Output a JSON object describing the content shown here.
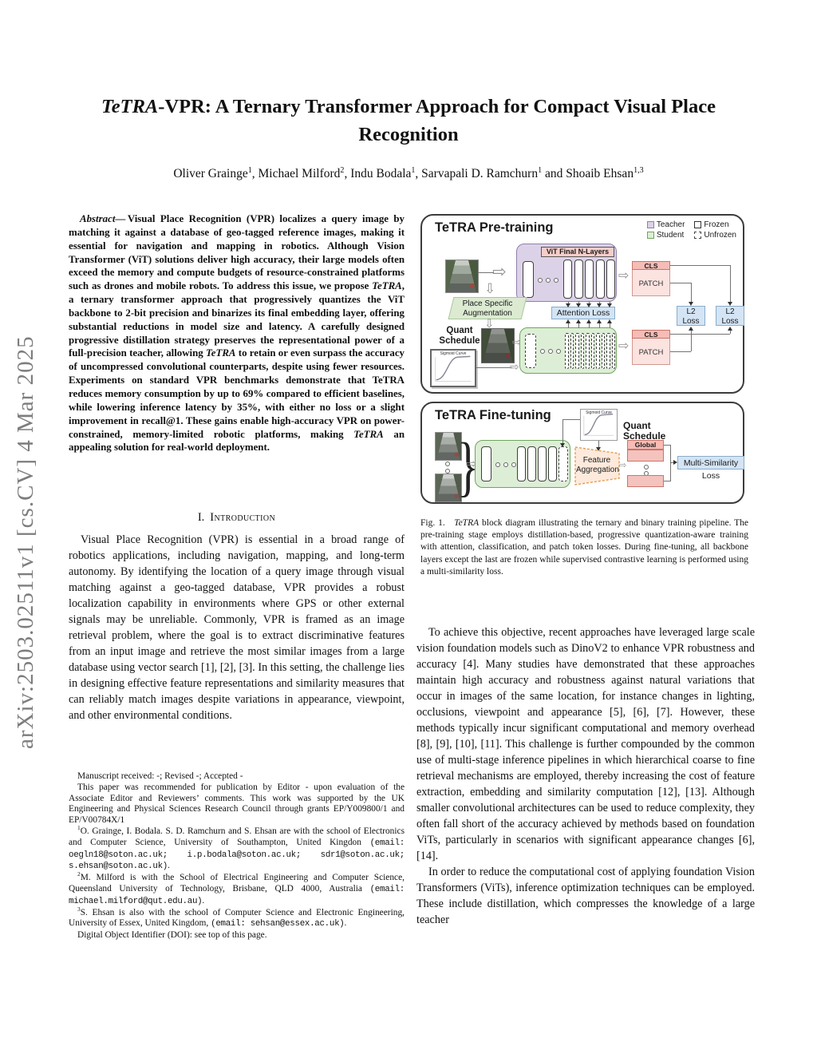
{
  "arxiv_watermark": "arXiv:2503.02511v1  [cs.CV]  4 Mar 2025",
  "title": {
    "italic_prefix": "TeTRA",
    "rest": "-VPR: A Ternary Transformer Approach for Compact Visual Place Recognition"
  },
  "authors_segments": [
    {
      "t": "Oliver Grainge"
    },
    {
      "t": "1",
      "sup": true
    },
    {
      "t": ", Michael Milford"
    },
    {
      "t": "2",
      "sup": true
    },
    {
      "t": ", Indu Bodala"
    },
    {
      "t": "1",
      "sup": true
    },
    {
      "t": ", Sarvapali D. Ramchurn"
    },
    {
      "t": "1",
      "sup": true
    },
    {
      "t": " and Shoaib Ehsan"
    },
    {
      "t": "1,3",
      "sup": true
    }
  ],
  "abstract_segments": [
    {
      "t": "Abstract",
      "i": true
    },
    {
      "t": "— Visual Place Recognition (VPR) localizes a query image by matching it against a database of geo-tagged reference images, making it essential for navigation and mapping in robotics. Although Vision Transformer (ViT) solutions deliver high accuracy, their large models often exceed the memory and compute budgets of resource-constrained platforms such as drones and mobile robots. To address this issue, we propose "
    },
    {
      "t": "TeTRA",
      "i": true
    },
    {
      "t": ", a ternary transformer approach that progressively quantizes the ViT backbone to 2-bit precision and binarizes its final embedding layer, offering substantial reductions in model size and latency. A carefully designed progressive distillation strategy preserves the representational power of a full-precision teacher, allowing "
    },
    {
      "t": "TeTRA",
      "i": true
    },
    {
      "t": " to retain or even surpass the accuracy of uncompressed convolutional counterparts, despite using fewer resources. Experiments on standard VPR benchmarks demonstrate that TeTRA reduces memory consumption by up to 69% compared to efficient baselines, while lowering inference latency by 35%, with either no loss or a slight improvement in recall@1. These gains enable high-accuracy VPR on power-constrained, memory-limited robotic platforms, making "
    },
    {
      "t": "TeTRA",
      "i": true
    },
    {
      "t": " an appealing solution for real-world deployment."
    }
  ],
  "section1": {
    "number": "I.",
    "title": "Introduction"
  },
  "intro_p1": "Visual Place Recognition (VPR) is essential in a broad range of robotics applications, including navigation, mapping, and long-term autonomy. By identifying the location of a query image through visual matching against a geo-tagged database, VPR provides a robust localization capability in environments where GPS or other external signals may be unreliable. Commonly, VPR is framed as an image retrieval problem, where the goal is to extract discriminative features from an input image and retrieve the most similar images from a large database using vector search [1], [2], [3]. In this setting, the challenge lies in designing effective feature representations and similarity measures that can reliably match images despite variations in appearance, viewpoint, and other environmental conditions.",
  "footnotes": [
    {
      "segments": [
        {
          "t": "Manuscript received: -; Revised -; Accepted -"
        }
      ]
    },
    {
      "segments": [
        {
          "t": "This paper was recommended for publication by Editor - upon evaluation of the Associate Editor and Reviewers’ comments. This work was supported by the UK Engineering and Physical Sciences Research Council through grants EP/Y009800/1 and EP/V00784X/1"
        }
      ]
    },
    {
      "segments": [
        {
          "t": "1",
          "sup": true
        },
        {
          "t": "O. Grainge, I. Bodala. S. D. Ramchurn and S. Ehsan are with the school of Electronics and Computer Science, University of Southampton, United Kingdon "
        },
        {
          "t": "(email: oegln18@soton.ac.uk; i.p.bodala@soton.ac.uk; sdr1@soton.ac.uk; s.ehsan@soton.ac.uk)",
          "mono": true
        },
        {
          "t": "."
        }
      ]
    },
    {
      "segments": [
        {
          "t": "2",
          "sup": true
        },
        {
          "t": "M. Milford is with the School of Electrical Engineering and Computer Science, Queensland University of Technology, Brisbane, QLD 4000, Australia "
        },
        {
          "t": "(email: michael.milford@qut.edu.au)",
          "mono": true
        },
        {
          "t": "."
        }
      ]
    },
    {
      "segments": [
        {
          "t": "3",
          "sup": true
        },
        {
          "t": "S. Ehsan is also with the school of Computer Science and Electronic Engineering, University of Essex, United Kingdom, "
        },
        {
          "t": "(email: sehsan@essex.ac.uk)",
          "mono": true
        },
        {
          "t": "."
        }
      ]
    },
    {
      "segments": [
        {
          "t": "Digital Object Identifier (DOI): see top of this page."
        }
      ]
    }
  ],
  "figure": {
    "pretraining": {
      "title": "TeTRA Pre-training",
      "legend": [
        {
          "label": "Teacher"
        },
        {
          "label": "Frozen"
        },
        {
          "label": "Student"
        },
        {
          "label": "Unfrozen"
        }
      ],
      "vit_header": "ViT Final N-Layers",
      "place_aug_line1": "Place Specific",
      "place_aug_line2": "Augmentation",
      "attention_loss": "Attention Loss",
      "quant_schedule": "Quant Schedule",
      "sigmoid_curve": "Sigmoid Curve",
      "cls": "CLS",
      "patch": "PATCH",
      "l2": "L2",
      "loss": "Loss"
    },
    "finetuning": {
      "title": "TeTRA Fine-tuning",
      "sigmoid_curve": "Sigmoid Curve",
      "quant_schedule": "Quant Schedule",
      "feature_line1": "Feature",
      "feature_line2": "Aggregation",
      "global_desc": "Global Desc",
      "multi_similarity_loss": "Multi-Similarity Loss"
    },
    "caption_segments": [
      {
        "t": "Fig. 1.  "
      },
      {
        "t": "TeTRA",
        "i": true
      },
      {
        "t": " block diagram illustrating the ternary and binary training pipeline. The pre-training stage employs distillation-based, progressive quantization-aware training with attention, classification, and patch token losses. During fine-tuning, all backbone layers except the last are frozen while supervised contrastive learning is performed using a multi-similarity loss."
      }
    ]
  },
  "body_right": {
    "p1": "To achieve this objective, recent approaches have leveraged large scale vision foundation models such as DinoV2 to enhance VPR robustness and accuracy [4]. Many studies have demonstrated that these approaches maintain high accuracy and robustness against natural variations that occur in images of the same location, for instance changes in lighting, occlusions, viewpoint and appearance [5], [6], [7]. However, these methods typically incur significant computational and memory overhead [8], [9], [10], [11]. This challenge is further compounded by the common use of multi-stage inference pipelines in which hierarchical coarse to fine retrieval mechanisms are employed, thereby increasing the cost of feature extraction, embedding and similarity computation [12], [13]. Although smaller convolutional architectures can be used to reduce complexity, they often fall short of the accuracy achieved by methods based on foundation ViTs, particularly in scenarios with significant appearance changes [6], [14].",
    "p2": "In order to reduce the computational cost of applying foundation Vision Transformers (ViTs), inference optimization techniques can be employed. These include distillation, which compresses the knowledge of a large teacher"
  },
  "colors": {
    "teacher_fill": "#dcd2e8",
    "teacher_border": "#8f7fab",
    "student_fill": "#ddeed6",
    "student_border": "#6fa55c",
    "pink_fill": "#fbe3e0",
    "pink_header": "#f6bcb6",
    "pink_border": "#c9756b",
    "blue_fill": "#d4e4f4",
    "blue_border": "#8aadcb",
    "aug_fill": "#dcead2",
    "aug_border": "#a9c79a",
    "orange_fill": "#fdeadc",
    "orange_border": "#e09f50",
    "watermark": "#7d7d7d"
  }
}
